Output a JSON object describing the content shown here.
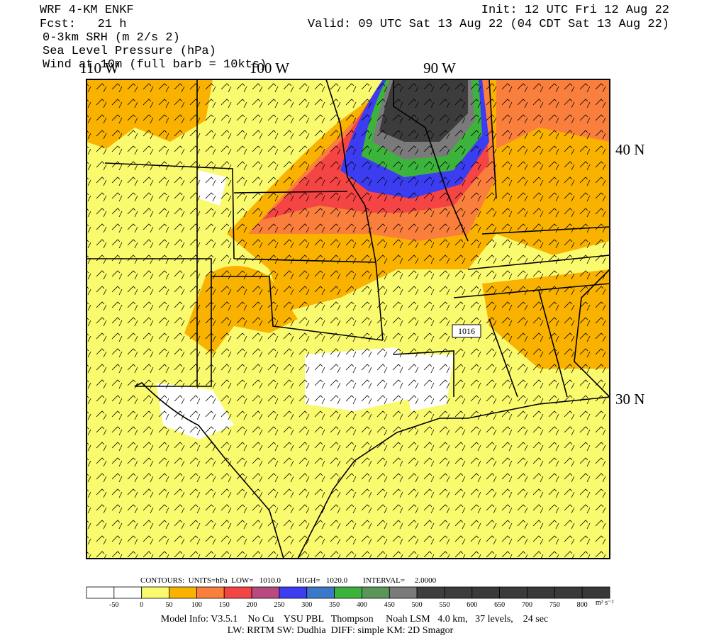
{
  "header": {
    "model": "WRF 4-KM ENKF",
    "forecast": "Fcst:   21 h",
    "fields": [
      "0-3km SRH (m 2/s 2)",
      "Sea Level Pressure (hPa)",
      "Wind at 10m (full barb = 10kts)"
    ],
    "init": "Init: 12 UTC Fri 12 Aug 22",
    "valid": "Valid: 09 UTC Sat 13 Aug 22 (04 CDT Sat 13 Aug 22)"
  },
  "map": {
    "lon_labels": [
      "110 W",
      "100 W",
      "90 W"
    ],
    "lat_labels": [
      "40 N",
      "30 N"
    ],
    "contour_label": "1016"
  },
  "contours_info": "CONTOURS:  UNITS=hPa  LOW=   1010.0        HIGH=   1020.0        INTERVAL=     2.0000",
  "colorbar": {
    "colors": [
      "#ffffff",
      "#ffffff",
      "#fafa6e",
      "#f9b200",
      "#fa7f3c",
      "#f54444",
      "#b84a80",
      "#3c3cf0",
      "#3c78c8",
      "#3cb43c",
      "#5a965a",
      "#7a7a7a",
      "#3e3e3e",
      "#3c3c3c",
      "#3a3a3a",
      "#3b3b3b",
      "#393939",
      "#3a3a3a",
      "#383838"
    ],
    "labels": [
      -50,
      0,
      50,
      100,
      150,
      200,
      250,
      300,
      350,
      400,
      450,
      500,
      550,
      600,
      650,
      700,
      750,
      800
    ],
    "units": "m² s⁻²"
  },
  "footer": [
    "Model Info: V3.5.1    No Cu    YSU PBL   Thompson     Noah LSM   4.0 km,   37 levels,    24 sec",
    "LW: RRTM SW: Dudhia  DIFF: simple KM: 2D Smagor"
  ]
}
